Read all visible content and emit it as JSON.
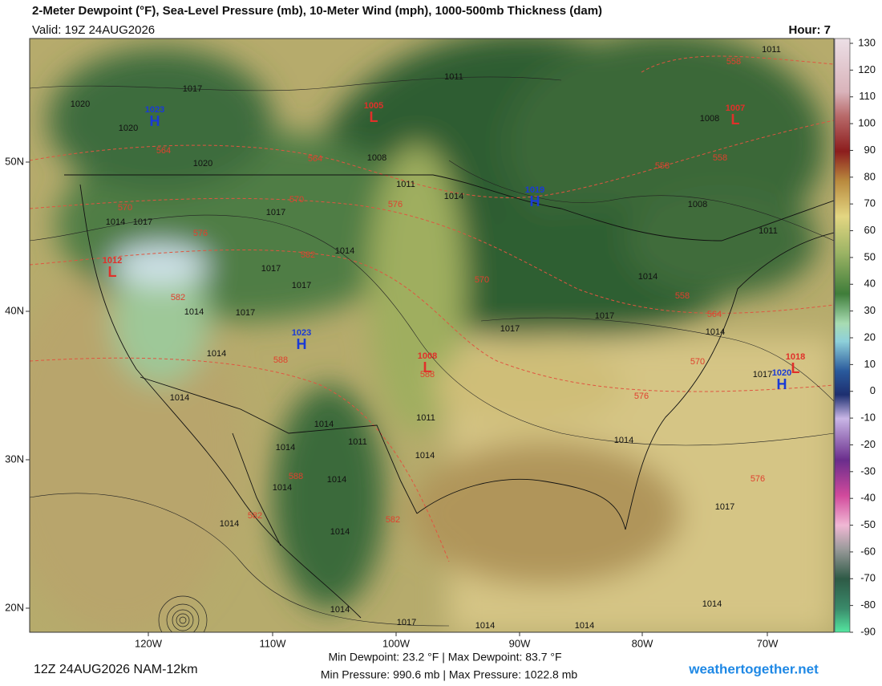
{
  "header": {
    "title": "2-Meter Dewpoint (°F), Sea-Level Pressure (mb), 10-Meter Wind (mph), 1000-500mb Thickness (dam)",
    "valid": "Valid: 19Z 24AUG2026",
    "hour": "Hour: 7"
  },
  "colorbar": {
    "ticks": [
      130,
      120,
      110,
      100,
      90,
      80,
      70,
      60,
      50,
      40,
      30,
      20,
      10,
      0,
      -10,
      -20,
      -30,
      -40,
      -50,
      -60,
      -70,
      -80,
      -90
    ]
  },
  "longitude_labels": [
    "120W",
    "110W",
    "100W",
    "90W",
    "80W",
    "70W"
  ],
  "latitude_labels": [
    "50N",
    "40N",
    "30N",
    "20N"
  ],
  "pressure_centers": [
    {
      "type": "H",
      "value": 1023
    },
    {
      "type": "L",
      "value": 1005
    },
    {
      "type": "L",
      "value": 1007
    },
    {
      "type": "H",
      "value": 1019
    },
    {
      "type": "L",
      "value": 1012
    },
    {
      "type": "H",
      "value": 1023
    },
    {
      "type": "L",
      "value": 1008
    },
    {
      "type": "H",
      "value": 1020
    },
    {
      "type": "L",
      "value": 1018
    }
  ],
  "isobar_labels": [
    1017,
    1020,
    1020,
    1020,
    1011,
    1011,
    1008,
    1011,
    1014,
    1008,
    1008,
    1011,
    1017,
    1017,
    1014,
    1014,
    1017,
    1017,
    1014,
    1017,
    1014,
    1014,
    1014,
    1011,
    1011,
    1014,
    1014,
    1014,
    1014,
    1014,
    1014,
    1014,
    1017,
    1014,
    1014,
    1014,
    1017,
    1017,
    1014,
    1014,
    1017,
    1014,
    1017
  ],
  "thickness_labels": [
    558,
    564,
    564,
    558,
    558,
    570,
    570,
    576,
    576,
    582,
    570,
    558,
    564,
    582,
    588,
    588,
    570,
    576,
    576,
    588,
    582,
    582
  ],
  "footer": {
    "run": "12Z 24AUG2026 NAM-12km",
    "dewpoint": "Min Dewpoint:  23.2 °F | Max Dewpoint:  83.7 °F",
    "pressure": "Min Pressure: 990.6 mb | Max Pressure: 1022.8 mb",
    "site": "weathertogether.net"
  }
}
